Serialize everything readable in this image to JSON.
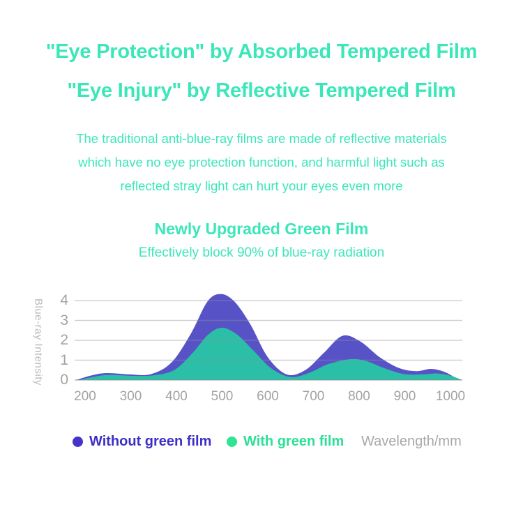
{
  "header": {
    "title_line1": "\"Eye Protection\" by Absorbed Tempered Film",
    "title_line2": "\"Eye Injury\" by Reflective Tempered Film",
    "description_lines": [
      "The traditional anti-blue-ray films are made of reflective materials",
      "which have no eye protection function, and harmful light such as",
      "reflected stray light can hurt your eyes even more"
    ]
  },
  "section": {
    "title": "Newly Upgraded Green Film",
    "subtitle": "Effectively block 90% of blue-ray radiation"
  },
  "colors": {
    "mint": "#3be7b8",
    "purple_fill": "#5753c7",
    "teal_fill": "#2abfa6",
    "legend_purple_dot": "#4634ca",
    "legend_purple_text": "#3d2fc5",
    "legend_green_dot": "#2de593",
    "legend_green_text": "#2bdf96",
    "gridline": "#8e8e93",
    "tick_gray": "#a3a3a3",
    "axis_label_gray": "#b9b9b9",
    "wavelength_gray": "#a8a8a8",
    "background": "#ffffff"
  },
  "chart_data": {
    "type": "area",
    "title": "",
    "xlabel": "Wavelength/mm",
    "ylabel": "Blue-ray Intensity",
    "xticks": [
      200,
      300,
      400,
      500,
      600,
      700,
      800,
      900,
      1000
    ],
    "yticks": [
      0,
      1,
      2,
      3,
      4
    ],
    "xlim": [
      180,
      1028
    ],
    "ylim": [
      0,
      4.5
    ],
    "grid": true,
    "legend_position": "bottom",
    "series": [
      {
        "name": "Without green film",
        "color": "#5753c7",
        "points": [
          [
            180,
            0
          ],
          [
            215,
            0.24
          ],
          [
            248,
            0.35
          ],
          [
            300,
            0.28
          ],
          [
            345,
            0.3
          ],
          [
            390,
            0.9
          ],
          [
            432,
            2.35
          ],
          [
            468,
            3.95
          ],
          [
            497,
            4.33
          ],
          [
            527,
            3.95
          ],
          [
            562,
            2.8
          ],
          [
            600,
            1.15
          ],
          [
            642,
            0.28
          ],
          [
            682,
            0.5
          ],
          [
            722,
            1.35
          ],
          [
            763,
            2.22
          ],
          [
            802,
            1.95
          ],
          [
            845,
            1.15
          ],
          [
            888,
            0.6
          ],
          [
            925,
            0.45
          ],
          [
            958,
            0.56
          ],
          [
            988,
            0.4
          ],
          [
            1015,
            0.05
          ]
        ]
      },
      {
        "name": "With green film",
        "color": "#2abfa6",
        "points": [
          [
            186,
            0
          ],
          [
            220,
            0.17
          ],
          [
            252,
            0.26
          ],
          [
            305,
            0.21
          ],
          [
            350,
            0.24
          ],
          [
            395,
            0.5
          ],
          [
            435,
            1.35
          ],
          [
            470,
            2.3
          ],
          [
            500,
            2.63
          ],
          [
            532,
            2.3
          ],
          [
            568,
            1.5
          ],
          [
            607,
            0.6
          ],
          [
            650,
            0.15
          ],
          [
            692,
            0.38
          ],
          [
            732,
            0.8
          ],
          [
            780,
            1.05
          ],
          [
            815,
            0.96
          ],
          [
            855,
            0.6
          ],
          [
            898,
            0.3
          ],
          [
            942,
            0.29
          ],
          [
            972,
            0.33
          ],
          [
            1000,
            0.22
          ],
          [
            1026,
            0
          ]
        ]
      }
    ]
  }
}
